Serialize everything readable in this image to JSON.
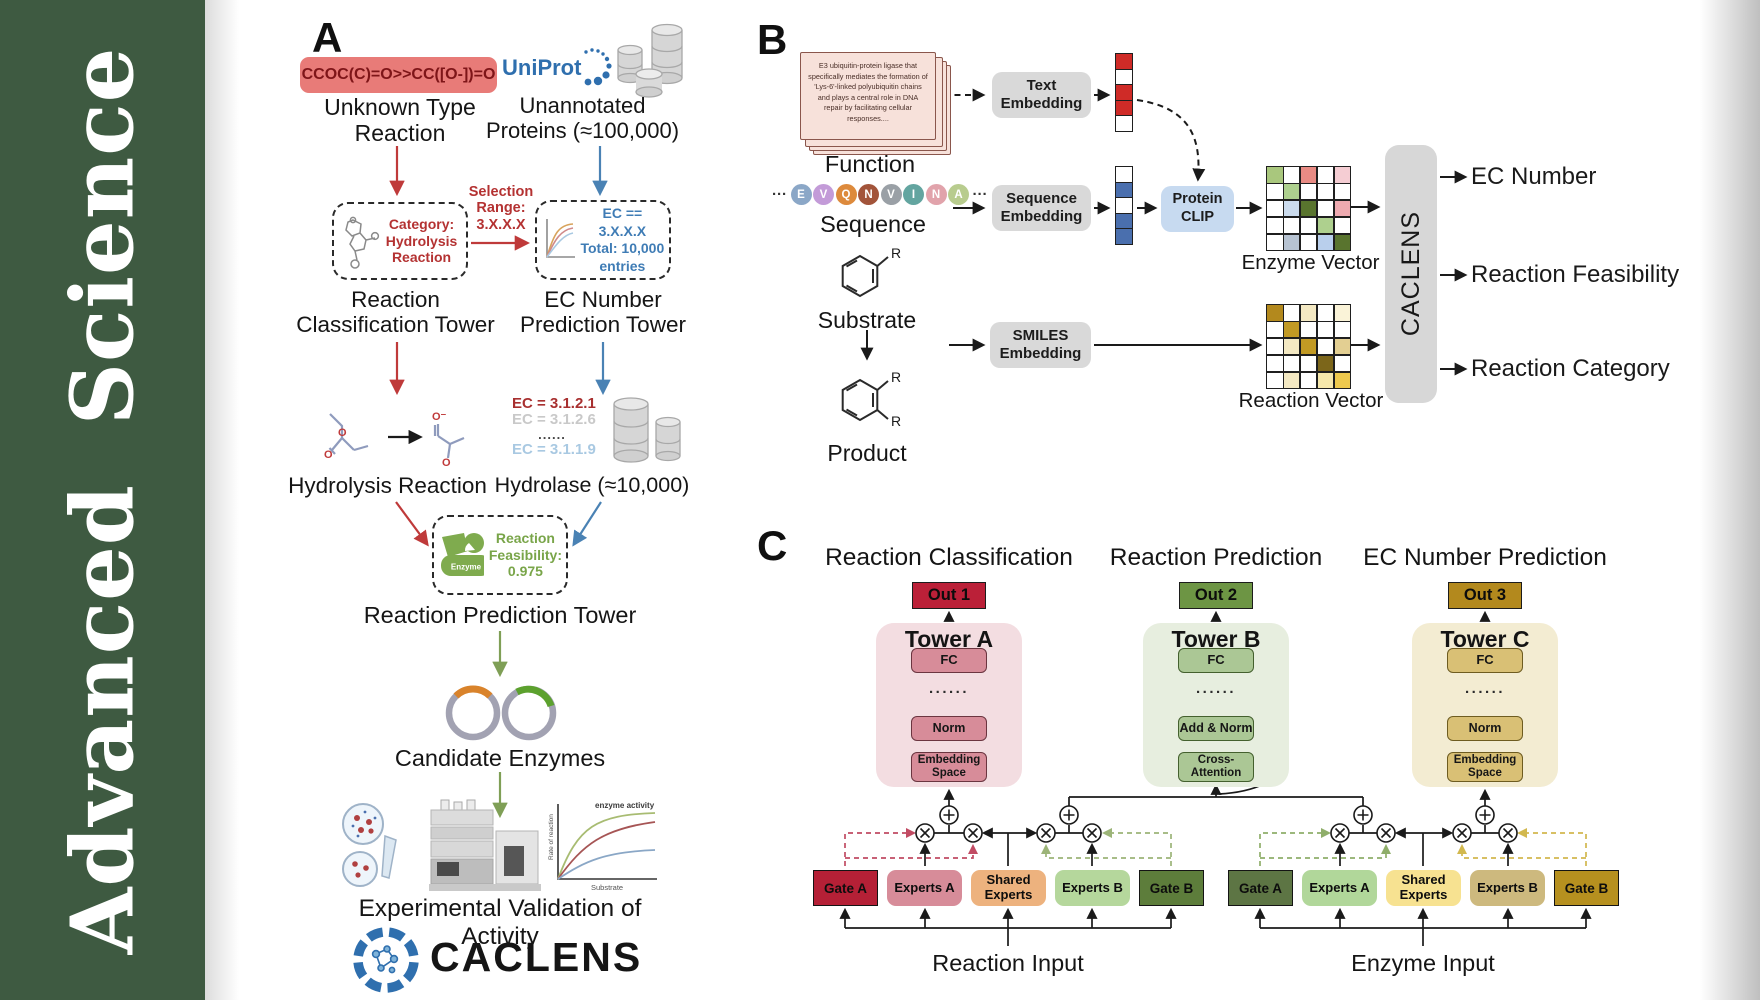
{
  "banner": {
    "title": "Advanced Science"
  },
  "a": {
    "panel_label": "A",
    "smiles": "CCOC(C)=O>>CC([O-])=O",
    "unknown_l1": "Unknown Type",
    "unknown_l2": "Reaction",
    "uniprot": "UniProt",
    "unannotated_l1": "Unannotated",
    "unannotated_l2": "Proteins (≈100,000)",
    "selection_l1": "Selection",
    "selection_l2": "Range:",
    "selection_l3": "3.X.X.X",
    "category_l1": "Category:",
    "category_l2": "Hydrolysis",
    "category_l3": "Reaction",
    "ecbox_l1": "EC == 3.X.X.X",
    "ecbox_l2": "Total: 10,000",
    "ecbox_l3": "entries",
    "rc_tower_l1": "Reaction",
    "rc_tower_l2": "Classification Tower",
    "ec_tower_l1": "EC Number",
    "ec_tower_l2": "Prediction Tower",
    "ec_item1": "EC = 3.1.2.1",
    "ec_item2": "EC = 3.1.2.6",
    "ec_dots": "......",
    "ec_item3": "EC = 3.1.1.9",
    "hydrolysis_label": "Hydrolysis Reaction",
    "hydrolase_label": "Hydrolase (≈10,000)",
    "feasibility_l1": "Reaction",
    "feasibility_l2": "Feasibility:",
    "feasibility_value": "0.975",
    "enzyme_badge": "Enzyme",
    "rp_tower_label": "Reaction Prediction Tower",
    "candidate_label": "Candidate Enzymes",
    "graph": {
      "curve_label": "enzyme activity",
      "ylabel": "Rate of reaction",
      "xlabel": "Substrate"
    },
    "validation_label": "Experimental Validation of Activity",
    "brand": "CACLENS"
  },
  "b": {
    "panel_label": "B",
    "function_text": "E3 ubiquitin-protein ligase that specifically mediates the formation of 'Lys-6'-linked polyubiquitin chains and plays a central role in DNA repair by facilitating cellular responses....",
    "function_label": "Function",
    "ellipsis_left": "···",
    "ellipsis_right": "···",
    "sequence_tokens": [
      {
        "t": "E",
        "c": "#8ba7c7"
      },
      {
        "t": "V",
        "c": "#c39bd8"
      },
      {
        "t": "Q",
        "c": "#dd8a3c"
      },
      {
        "t": "N",
        "c": "#a2543a"
      },
      {
        "t": "V",
        "c": "#9aa0a6"
      },
      {
        "t": "I",
        "c": "#63a5a0"
      },
      {
        "t": "N",
        "c": "#e1a3ab"
      },
      {
        "t": "A",
        "c": "#b8cc8e"
      }
    ],
    "sequence_label": "Sequence",
    "substrate_label": "Substrate",
    "product_label": "Product",
    "r_group": "R",
    "text_embedding": "Text Embedding",
    "sequence_embedding": "Sequence Embedding",
    "smiles_embedding": "SMILES Embedding",
    "protein_clip": "Protein CLIP",
    "text_vector_colors": [
      "#cf2b27",
      "#ffffff",
      "#cf2b27",
      "#cf2b27",
      "#ffffff"
    ],
    "sequence_vector_colors": [
      "#ffffff",
      "#4a6fae",
      "#ffffff",
      "#4a6fae",
      "#4a6fae"
    ],
    "enzyme_vector_label": "Enzyme Vector",
    "reaction_vector_label": "Reaction Vector",
    "enzyme_vector_grid": [
      [
        "#a9c77d",
        "#ffffff",
        "#e98b84",
        "#ffffff",
        "#f5cdd3"
      ],
      [
        "#ffffff",
        "#aed08e",
        "#ffffff",
        "#ffffff",
        "#ffffff"
      ],
      [
        "#ffffff",
        "#ccdcee",
        "#59742e",
        "#ffffff",
        "#eeaab0"
      ],
      [
        "#ffffff",
        "#ffffff",
        "#ffffff",
        "#aed08e",
        "#ffffff"
      ],
      [
        "#ffffff",
        "#b7c3d2",
        "#ffffff",
        "#b9cfec",
        "#59742e"
      ]
    ],
    "reaction_vector_grid": [
      [
        "#b3891d",
        "#ffffff",
        "#f4e9c3",
        "#ffffff",
        "#faf3d8"
      ],
      [
        "#ffffff",
        "#c29a24",
        "#ffffff",
        "#ffffff",
        "#ffffff"
      ],
      [
        "#ffffff",
        "#f4e9c3",
        "#c29a24",
        "#ffffff",
        "#e3cf92"
      ],
      [
        "#ffffff",
        "#ffffff",
        "#ffffff",
        "#7c661a",
        "#ffffff"
      ],
      [
        "#ffffff",
        "#f4e9c3",
        "#ffffff",
        "#f6e8ab",
        "#eec94e"
      ]
    ],
    "caclens_label": "CACLENS",
    "outputs": [
      "EC Number",
      "Reaction Feasibility",
      "Reaction Category"
    ]
  },
  "c": {
    "panel_label": "C",
    "titles": [
      "Reaction Classification",
      "Reaction Prediction",
      "EC Number Prediction"
    ],
    "outs": [
      "Out 1",
      "Out 2",
      "Out 3"
    ],
    "dots": "......",
    "towers": [
      {
        "title": "Tower A",
        "fc": "FC",
        "mid": "Norm",
        "bottom": "Embedding Space"
      },
      {
        "title": "Tower B",
        "fc": "FC",
        "mid": "Add & Norm",
        "bottom": "Cross-Attention"
      },
      {
        "title": "Tower C",
        "fc": "FC",
        "mid": "Norm",
        "bottom": "Embedding Space"
      }
    ],
    "left_group": {
      "gate_a": "Gate A",
      "experts_a": "Experts A",
      "shared": "Shared Experts",
      "experts_b": "Experts B",
      "gate_b": "Gate B",
      "input_label": "Reaction Input"
    },
    "right_group": {
      "gate_a": "Gate A",
      "experts_a": "Experts A",
      "shared": "Shared Experts",
      "experts_b": "Experts B",
      "gate_b": "Gate B",
      "input_label": "Enzyme Input"
    }
  },
  "colors": {
    "banner_green": "#3e5a41",
    "uniprot_blue": "#2f6fae",
    "smiles_box_bg": "#e87b78",
    "smiles_text": "#7e1518",
    "red_arrow": "#bf3a3a",
    "blue_arrow": "#4a82b4",
    "green_arrow": "#7f9f56",
    "tower_a_bg": "#f3dde1",
    "tower_a_box": "#d78c99",
    "out1_bg": "#bb2038",
    "tower_b_bg": "#e7eedf",
    "tower_b_box": "#abc795",
    "out2_bg": "#6d9544",
    "tower_c_bg": "#f3ecd2",
    "tower_c_box": "#d9c075",
    "out3_bg": "#b3891d",
    "gate_a_left": "#b52036",
    "experts_a_left": "#d78c99",
    "shared_left": "#edb27e",
    "experts_b_left": "#b5d79c",
    "gate_b_left": "#5d7d3b",
    "gate_a_right": "#5d7544",
    "experts_a_right": "#b1d79a",
    "shared_right": "#f7e291",
    "experts_b_right": "#cdb97e",
    "gate_b_right": "#b6901f",
    "embedding_box_bg": "#d9d9d9",
    "protein_clip_bg": "#c7daf0",
    "caclens_box_bg": "#d7d7d7"
  }
}
